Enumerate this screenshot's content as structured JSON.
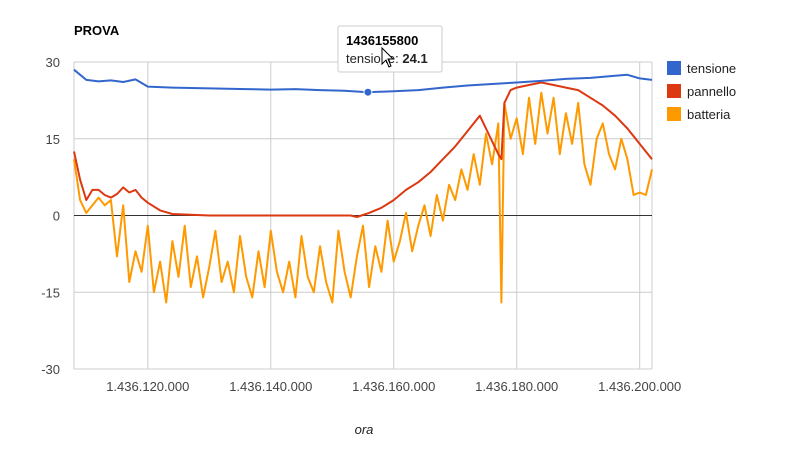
{
  "chart_data": {
    "type": "line",
    "title": "PROVA",
    "xlabel": "ora",
    "ylabel": "",
    "xlim": [
      1436108000,
      1436202000
    ],
    "ylim": [
      -30,
      30
    ],
    "x_ticks": [
      1436120000,
      1436140000,
      1436160000,
      1436180000,
      1436200000
    ],
    "x_tick_labels": [
      "1.436.120.000",
      "1.436.140.000",
      "1.436.160.000",
      "1.436.180.000",
      "1.436.200.000"
    ],
    "y_ticks": [
      -30,
      -15,
      0,
      15,
      30
    ],
    "y_tick_labels": [
      "-30",
      "-15",
      "0",
      "15",
      "30"
    ],
    "grid": true,
    "legend_position": "right",
    "series": [
      {
        "name": "tensione",
        "color": "#3366cc",
        "x": [
          1436108000,
          1436110000,
          1436112000,
          1436114000,
          1436116000,
          1436118000,
          1436120000,
          1436124000,
          1436128000,
          1436132000,
          1436136000,
          1436140000,
          1436144000,
          1436148000,
          1436152000,
          1436155800,
          1436160000,
          1436164000,
          1436168000,
          1436172000,
          1436176000,
          1436180000,
          1436184000,
          1436188000,
          1436192000,
          1436196000,
          1436198000,
          1436200000,
          1436202000
        ],
        "values": [
          28.5,
          26.5,
          26.2,
          26.4,
          26.1,
          26.6,
          25.2,
          25.0,
          24.9,
          24.8,
          24.7,
          24.6,
          24.7,
          24.5,
          24.4,
          24.1,
          24.3,
          24.5,
          25.0,
          25.4,
          25.7,
          26.0,
          26.3,
          26.7,
          26.9,
          27.3,
          27.5,
          26.8,
          26.5
        ]
      },
      {
        "name": "pannello",
        "color": "#dc3912",
        "x": [
          1436108000,
          1436109000,
          1436110000,
          1436111000,
          1436112000,
          1436113000,
          1436114000,
          1436115000,
          1436116000,
          1436117000,
          1436118000,
          1436119000,
          1436120000,
          1436122000,
          1436124000,
          1436126000,
          1436130000,
          1436135000,
          1436140000,
          1436145000,
          1436150000,
          1436153000,
          1436154000,
          1436156000,
          1436158000,
          1436160000,
          1436162000,
          1436164000,
          1436166000,
          1436168000,
          1436170000,
          1436171000,
          1436172000,
          1436173000,
          1436174000,
          1436175000,
          1436176000,
          1436177000,
          1436177500,
          1436178000,
          1436179000,
          1436180000,
          1436182000,
          1436184000,
          1436186000,
          1436188000,
          1436190000,
          1436192000,
          1436194000,
          1436196000,
          1436198000,
          1436200000,
          1436202000
        ],
        "values": [
          12.5,
          7.0,
          3.0,
          5.0,
          5.0,
          4.0,
          3.5,
          4.2,
          5.5,
          4.5,
          5.0,
          3.5,
          2.5,
          1.0,
          0.3,
          0.2,
          0.0,
          0.0,
          0.0,
          0.0,
          0.0,
          0.0,
          -0.3,
          0.5,
          1.5,
          3.0,
          5.0,
          6.5,
          8.5,
          11.0,
          13.5,
          15.0,
          16.5,
          18.0,
          19.5,
          17.0,
          14.5,
          12.0,
          11.0,
          22.0,
          24.5,
          25.0,
          25.5,
          26.0,
          25.5,
          25.0,
          24.5,
          23.0,
          21.5,
          19.5,
          17.0,
          14.0,
          11.0
        ]
      },
      {
        "name": "batteria",
        "color": "#ff9900",
        "x": [
          1436108000,
          1436109000,
          1436110000,
          1436111000,
          1436112000,
          1436113000,
          1436114000,
          1436115000,
          1436116000,
          1436117000,
          1436118000,
          1436119000,
          1436120000,
          1436121000,
          1436122000,
          1436123000,
          1436124000,
          1436125000,
          1436126000,
          1436127000,
          1436128000,
          1436129000,
          1436130000,
          1436131000,
          1436132000,
          1436133000,
          1436134000,
          1436135000,
          1436136000,
          1436137000,
          1436138000,
          1436139000,
          1436140000,
          1436141000,
          1436142000,
          1436143000,
          1436144000,
          1436145000,
          1436146000,
          1436147000,
          1436148000,
          1436149000,
          1436150000,
          1436151000,
          1436152000,
          1436153000,
          1436154000,
          1436155000,
          1436156000,
          1436157000,
          1436158000,
          1436159000,
          1436160000,
          1436161000,
          1436162000,
          1436163000,
          1436164000,
          1436165000,
          1436166000,
          1436167000,
          1436168000,
          1436169000,
          1436170000,
          1436171000,
          1436172000,
          1436173000,
          1436174000,
          1436175000,
          1436176000,
          1436177000,
          1436177500,
          1436178000,
          1436179000,
          1436180000,
          1436181000,
          1436182000,
          1436183000,
          1436184000,
          1436185000,
          1436186000,
          1436187000,
          1436188000,
          1436189000,
          1436190000,
          1436191000,
          1436192000,
          1436193000,
          1436194000,
          1436195000,
          1436196000,
          1436197000,
          1436198000,
          1436199000,
          1436200000,
          1436201000,
          1436202000
        ],
        "values": [
          11.0,
          3.0,
          0.5,
          2.0,
          3.5,
          2.0,
          3.0,
          -8.0,
          2.0,
          -13.0,
          -7.0,
          -11.0,
          -2.0,
          -15.0,
          -9.0,
          -17.0,
          -5.0,
          -12.0,
          -2.0,
          -14.0,
          -8.0,
          -16.0,
          -10.0,
          -3.0,
          -13.0,
          -9.0,
          -15.0,
          -4.0,
          -12.0,
          -16.0,
          -7.0,
          -14.0,
          -3.0,
          -11.0,
          -15.0,
          -9.0,
          -16.0,
          -4.0,
          -12.0,
          -15.0,
          -6.0,
          -13.0,
          -17.0,
          -3.0,
          -11.0,
          -16.0,
          -8.0,
          -2.0,
          -14.0,
          -6.0,
          -11.0,
          -1.0,
          -9.0,
          -5.0,
          0.5,
          -7.0,
          -2.0,
          2.0,
          -4.0,
          4.0,
          -1.0,
          6.0,
          3.0,
          9.0,
          5.0,
          12.0,
          6.0,
          16.0,
          10.0,
          18.0,
          -17.0,
          22.0,
          15.0,
          19.0,
          12.0,
          23.0,
          14.0,
          24.0,
          16.0,
          23.0,
          12.0,
          20.0,
          14.0,
          22.0,
          10.0,
          6.0,
          15.0,
          18.0,
          12.0,
          9.0,
          15.0,
          11.0,
          4.0,
          4.5,
          4.0,
          9.0
        ]
      }
    ],
    "tooltip": {
      "x_label": "1436155800",
      "series_label": "tensione: ",
      "value_label": "24.1",
      "point_x": 1436155800,
      "point_y": 24.1
    }
  }
}
